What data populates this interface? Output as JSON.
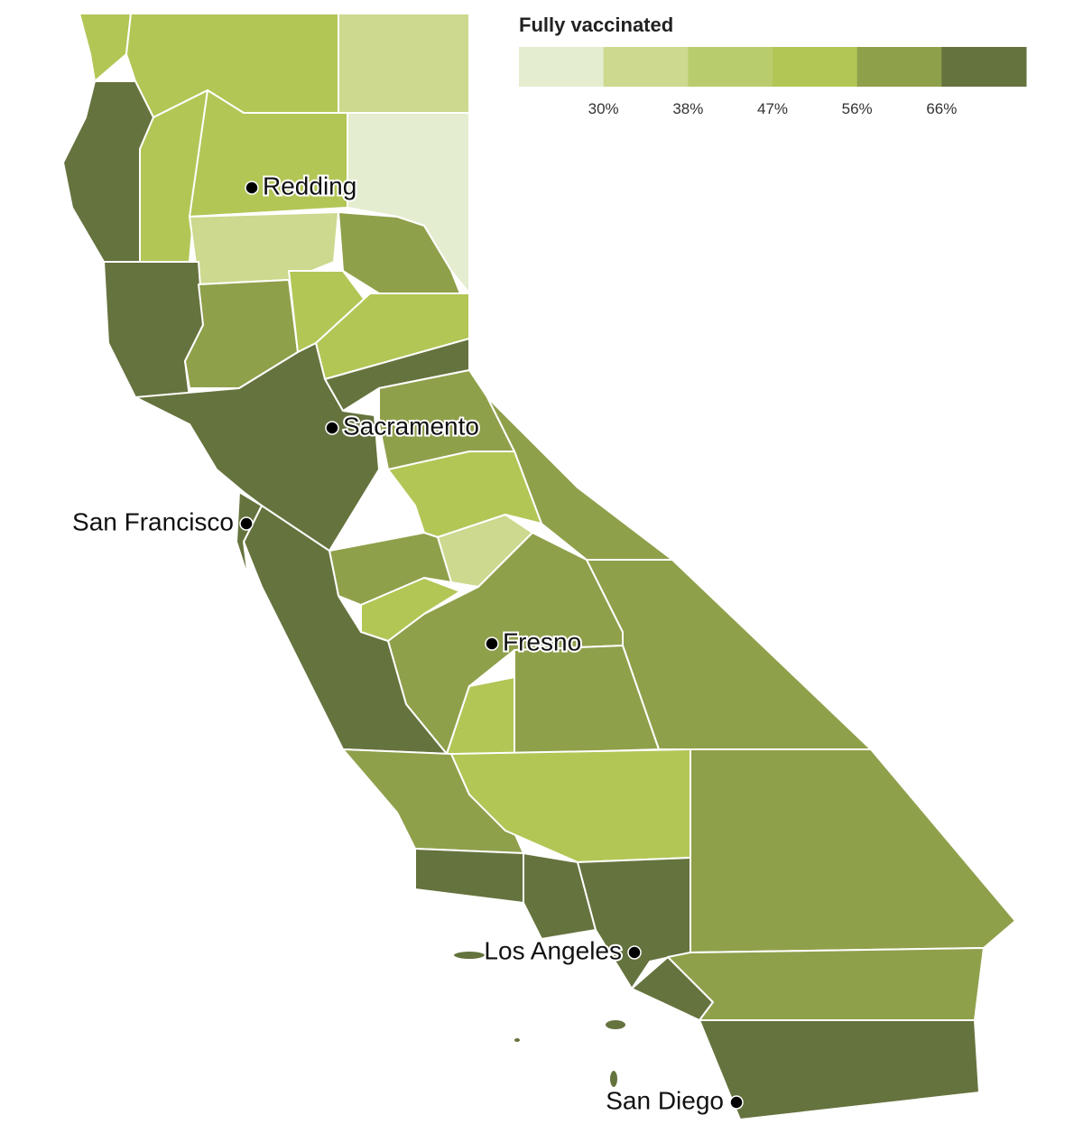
{
  "legend": {
    "title": "Fully vaccinated",
    "colors": [
      "#e4edd0",
      "#ccd98e",
      "#b9cc6d",
      "#b2c656",
      "#8fa04b",
      "#65733e"
    ],
    "ticks": [
      {
        "value": 30,
        "label": "30%"
      },
      {
        "value": 38,
        "label": "38%"
      },
      {
        "value": 47,
        "label": "47%"
      },
      {
        "value": 56,
        "label": "56%"
      },
      {
        "value": 66,
        "label": "66%"
      }
    ]
  },
  "cities": [
    {
      "label": "Redding"
    },
    {
      "label": "Sacramento"
    },
    {
      "label": "San Francisco"
    },
    {
      "label": "Fresno"
    },
    {
      "label": "Los Angeles"
    },
    {
      "label": "San Diego"
    }
  ]
}
